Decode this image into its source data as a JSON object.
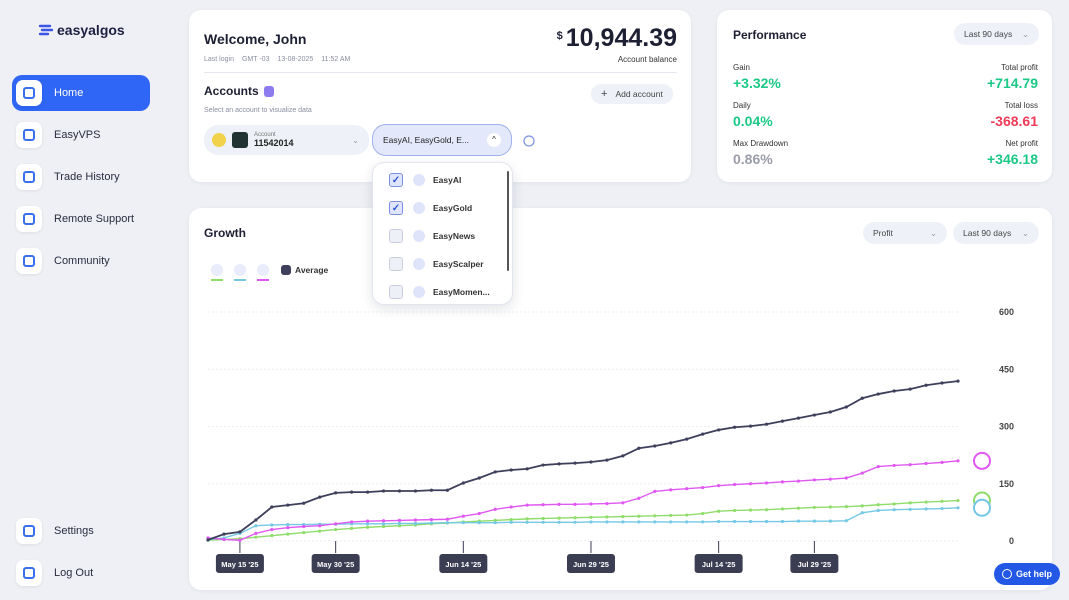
{
  "sidebar": {
    "brand": "easyalgos",
    "nav": [
      "Home",
      "EasyVPS",
      "Trade History",
      "Remote Support",
      "Community"
    ],
    "active": 0,
    "bottom": [
      "Settings",
      "Log Out"
    ]
  },
  "welcome": {
    "title": "Welcome, John",
    "last_login_label": "Last login",
    "timezone": "GMT -03",
    "date": "13-08-2025",
    "time": "11:52 AM",
    "currency": "$",
    "balance": "10,944.39",
    "balance_label": "Account balance"
  },
  "accounts": {
    "title": "Accounts",
    "subtitle": "Select an account to visualize data",
    "add_button": "Add account",
    "account_label": "Account",
    "account_number": "11542014",
    "selected": "EasyAI, EasyGold, E...",
    "options": [
      {
        "label": "EasyAI",
        "checked": true
      },
      {
        "label": "EasyGold",
        "checked": true
      },
      {
        "label": "EasyNews",
        "checked": false
      },
      {
        "label": "EasyScalper",
        "checked": false
      },
      {
        "label": "EasyMomen...",
        "checked": false
      }
    ]
  },
  "performance": {
    "title": "Performance",
    "period": "Last 90 days",
    "stats": [
      {
        "label": "Gain",
        "value": "+3.32%"
      },
      {
        "label": "Total profit",
        "value": "+714.79"
      },
      {
        "label": "Daily",
        "value": "0.04%"
      },
      {
        "label": "Total loss",
        "value": "-368.61"
      },
      {
        "label": "Max Drawdown",
        "value": "0.86%"
      },
      {
        "label": "Net profit",
        "value": "+346.18"
      }
    ]
  },
  "growth": {
    "title": "Growth",
    "filter": "Profit",
    "period": "Last 90 days"
  },
  "chart_data": {
    "type": "line",
    "categories": [
      null,
      null,
      "May 15 '25",
      null,
      null,
      null,
      null,
      null,
      "May 30 '25",
      null,
      null,
      null,
      null,
      null,
      null,
      null,
      "Jun 14 '25",
      null,
      null,
      null,
      null,
      null,
      null,
      null,
      "Jun 29 '25",
      null,
      null,
      null,
      null,
      null,
      null,
      null,
      "Jul 14 '25",
      null,
      null,
      null,
      null,
      null,
      "Jul 29 '25",
      null,
      null,
      null,
      null,
      null,
      null,
      null,
      null,
      null
    ],
    "series": [
      {
        "color": "#8fdc6a",
        "values": [
          2,
          4,
          6,
          10,
          14,
          18,
          22,
          26,
          30,
          33,
          36,
          38,
          40,
          42,
          45,
          47,
          50,
          52,
          54,
          56,
          58,
          59,
          60,
          61,
          62,
          63,
          64,
          65,
          66,
          67,
          68,
          72,
          78,
          80,
          81,
          82,
          84,
          86,
          88,
          89,
          90,
          92,
          95,
          97,
          100,
          102,
          104,
          106
        ]
      },
      {
        "color": "#74c8e4",
        "values": [
          3,
          8,
          20,
          40,
          42,
          43,
          43,
          44,
          44,
          45,
          45,
          45,
          46,
          46,
          47,
          48,
          48,
          48,
          48,
          49,
          49,
          49,
          49,
          49,
          50,
          50,
          50,
          50,
          50,
          50,
          50,
          50,
          51,
          51,
          51,
          51,
          51,
          52,
          52,
          52,
          53,
          74,
          80,
          82,
          83,
          84,
          85,
          87
        ]
      },
      {
        "color": "#e058f2",
        "values": [
          8,
          4,
          2,
          20,
          30,
          35,
          38,
          40,
          45,
          50,
          52,
          53,
          54,
          55,
          56,
          57,
          65,
          72,
          83,
          89,
          94,
          95,
          96,
          96,
          97,
          98,
          100,
          112,
          130,
          134,
          137,
          140,
          145,
          148,
          150,
          152,
          155,
          157,
          160,
          162,
          165,
          178,
          195,
          198,
          200,
          203,
          206,
          210
        ]
      },
      {
        "name": "Average",
        "color": "#3e3f5b",
        "values": [
          3,
          18,
          24,
          55,
          89,
          94,
          99,
          115,
          126,
          128,
          128,
          131,
          131,
          131,
          133,
          133,
          152,
          165,
          181,
          186,
          189,
          199,
          202,
          204,
          207,
          212,
          223,
          243,
          249,
          257,
          267,
          280,
          291,
          298,
          301,
          306,
          314,
          322,
          330,
          338,
          351,
          374,
          385,
          393,
          398,
          408,
          414,
          419
        ]
      }
    ],
    "ylim": [
      0,
      600
    ],
    "yticks": [
      0,
      150,
      300,
      450,
      600
    ],
    "grid": true
  },
  "help": "Get help"
}
